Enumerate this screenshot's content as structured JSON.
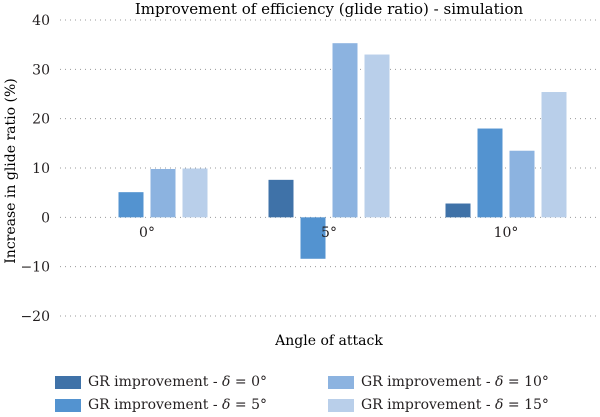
{
  "chart_data": {
    "type": "bar",
    "title": "Improvement of efficiency (glide ratio) - simulation",
    "xlabel": "Angle of attack",
    "ylabel": "Increase in glide ratio (%)",
    "categories": [
      "0°",
      "5°",
      "10°"
    ],
    "ylim": [
      -20,
      40
    ],
    "yticks": [
      40,
      30,
      20,
      10,
      0,
      -10,
      -20
    ],
    "ytick_labels": [
      "40",
      "30",
      "20",
      "10",
      "0",
      "−10",
      "−20"
    ],
    "grid": "horizontal dotted",
    "legend_placement": "bottom",
    "series": [
      {
        "name": "GR improvement - δ = 0°",
        "name_prefix": "GR improvement - ",
        "name_symbol": "δ",
        "name_suffix": " = 0°",
        "color": "#3f72a8",
        "values": [
          0,
          7.6,
          2.8
        ]
      },
      {
        "name": "GR improvement - δ = 5°",
        "name_prefix": "GR improvement - ",
        "name_symbol": "δ",
        "name_suffix": " = 5°",
        "color": "#5393d0",
        "values": [
          5.1,
          -8.4,
          18
        ]
      },
      {
        "name": "GR improvement - δ = 10°",
        "name_prefix": "GR improvement - ",
        "name_symbol": "δ",
        "name_suffix": " = 10°",
        "color": "#8cb3e0",
        "values": [
          9.8,
          35.3,
          13.5
        ]
      },
      {
        "name": "GR improvement - δ = 15°",
        "name_prefix": "GR improvement - ",
        "name_symbol": "δ",
        "name_suffix": " = 15°",
        "color": "#b9cfea",
        "values": [
          9.9,
          33,
          25.4
        ]
      }
    ]
  }
}
